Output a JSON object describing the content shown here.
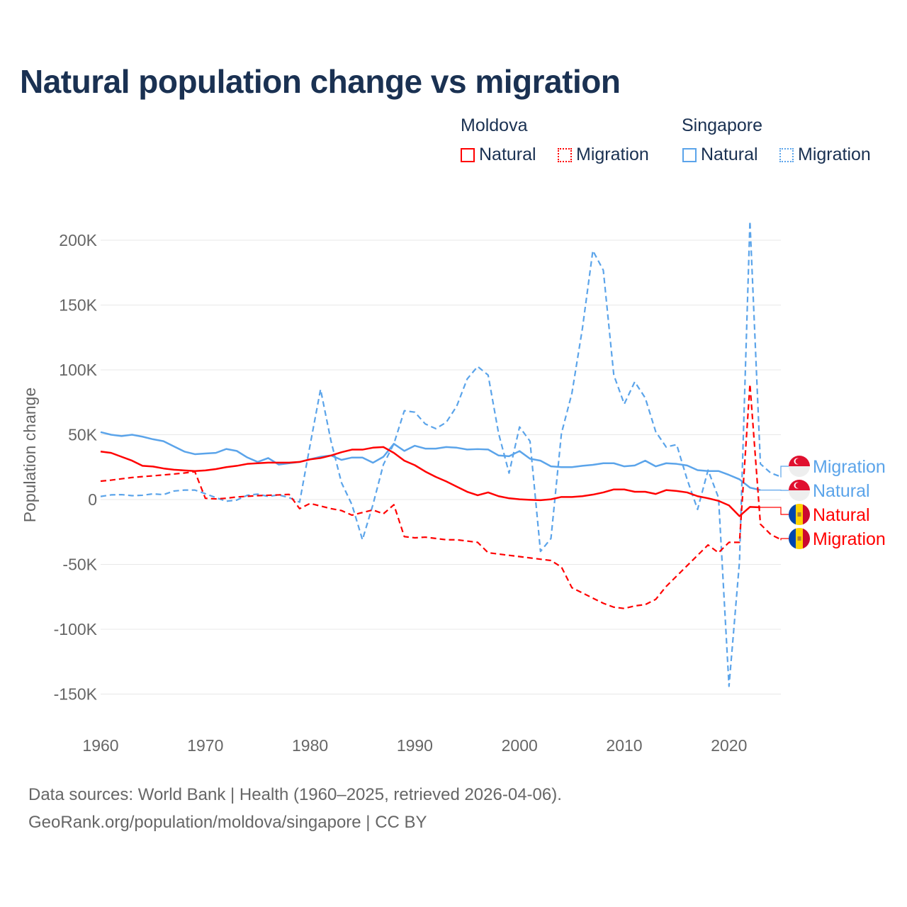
{
  "title": "Natural population change vs migration",
  "legend": {
    "groups": [
      {
        "name": "Moldova",
        "items": [
          {
            "label": "Natural",
            "style": "solid",
            "color": "#ff0000"
          },
          {
            "label": "Migration",
            "style": "dotted",
            "color": "#ff0000"
          }
        ]
      },
      {
        "name": "Singapore",
        "items": [
          {
            "label": "Natural",
            "style": "solid",
            "color": "#5ba4ea"
          },
          {
            "label": "Migration",
            "style": "dotted",
            "color": "#5ba4ea"
          }
        ]
      }
    ]
  },
  "footer": {
    "line1": "Data sources: World Bank | Health (1960–2025, retrieved 2026-04-06).",
    "line2": "GeoRank.org/population/moldova/singapore | CC BY"
  },
  "chart_data": {
    "type": "line",
    "title": "Natural population change vs migration",
    "xlabel": "",
    "ylabel": "Population change",
    "xlim": [
      1960,
      2025
    ],
    "ylim": [
      -165000,
      225000
    ],
    "xticks": [
      1960,
      1970,
      1980,
      1990,
      2000,
      2010,
      2020
    ],
    "xtick_labels": [
      "1960",
      "1970",
      "1980",
      "1990",
      "2000",
      "2010",
      "2020"
    ],
    "yticks": [
      -150000,
      -100000,
      -50000,
      0,
      50000,
      100000,
      150000,
      200000
    ],
    "ytick_labels": [
      "-150K",
      "-100K",
      "-50K",
      "0",
      "50K",
      "100K",
      "150K",
      "200K"
    ],
    "grid": true,
    "legend_position": "top-right",
    "series": [
      {
        "name": "Singapore Migration",
        "end_label": "Migration",
        "country": "Singapore",
        "color": "#5ba4ea",
        "dash": true,
        "start_year": 1960,
        "values": [
          2.4,
          3.6,
          3.8,
          3,
          3.3,
          4.4,
          3.8,
          6.6,
          7.3,
          7.3,
          4.5,
          1.5,
          -1.3,
          -0.4,
          3.3,
          4.2,
          2.4,
          3.6,
          1.5,
          -2,
          42,
          85,
          45,
          13,
          -4,
          -31,
          -4,
          27,
          43,
          68.5,
          67.4,
          58.3,
          54.7,
          59.5,
          72,
          93,
          102.6,
          96,
          51,
          20.4,
          56,
          45,
          -40,
          -30,
          51,
          82,
          131.8,
          192,
          176.8,
          96,
          73.7,
          90.8,
          78.4,
          52.4,
          40.5,
          42.4,
          15.6,
          -7.6,
          22.7,
          1.4,
          -144,
          -48,
          214.7,
          27.5,
          20.4,
          17.5
        ]
      },
      {
        "name": "Singapore Natural",
        "end_label": "Natural",
        "country": "Singapore",
        "color": "#5ba4ea",
        "dash": false,
        "start_year": 1960,
        "values": [
          52,
          50,
          49,
          50,
          48.5,
          46.5,
          45,
          41,
          37,
          35,
          35.5,
          36,
          39,
          37.5,
          32.5,
          29,
          32,
          27,
          28,
          29,
          31,
          33,
          34,
          30.6,
          32.4,
          32.4,
          28.4,
          33,
          43,
          37.5,
          41.5,
          39.3,
          39.3,
          40.5,
          40,
          38.6,
          38.9,
          38.6,
          34,
          33.4,
          37.4,
          31.5,
          30,
          25.6,
          25,
          25,
          26,
          26.8,
          28,
          28,
          25.6,
          26.3,
          30,
          25.6,
          28,
          27.5,
          26.3,
          22.7,
          22,
          22,
          19,
          15.6,
          9.2,
          7.3
        ]
      },
      {
        "name": "Moldova Natural",
        "end_label": "Natural",
        "country": "Moldova",
        "color": "#ff0000",
        "dash": false,
        "start_year": 1960,
        "values": [
          37,
          36,
          33,
          30,
          26,
          25.5,
          24,
          23,
          22.5,
          22,
          22.5,
          23.5,
          25,
          26,
          27.5,
          28,
          28.5,
          28.5,
          28.5,
          29,
          31,
          32,
          34,
          36.5,
          38.5,
          38.5,
          40,
          40.5,
          36,
          30,
          26.5,
          21.6,
          17.5,
          14,
          10,
          6,
          3.3,
          5.5,
          2.6,
          1,
          0.2,
          -0.2,
          -0.5,
          0.2,
          2,
          2,
          2.6,
          3.8,
          5.5,
          7.8,
          7.8,
          6,
          6,
          4.3,
          7.3,
          6.6,
          5.5,
          2.6,
          1,
          -1,
          -4.5,
          -12.8,
          -5.7,
          -6
        ]
      },
      {
        "name": "Moldova Migration",
        "end_label": "Migration",
        "country": "Moldova",
        "color": "#ff0000",
        "dash": true,
        "start_year": 1960,
        "values": [
          14.2,
          15,
          16,
          17,
          17.7,
          18.3,
          19,
          19.7,
          20.5,
          21.5,
          1,
          0.5,
          1,
          2,
          2.5,
          3,
          3.3,
          3.6,
          4,
          -7,
          -3,
          -5,
          -7,
          -8.5,
          -12,
          -10,
          -8,
          -11,
          -4,
          -28.6,
          -29.5,
          -29,
          -30,
          -31,
          -31,
          -32,
          -33,
          -41,
          -42,
          -43,
          -44,
          -45,
          -46,
          -47,
          -52,
          -68,
          -72,
          -76,
          -80,
          -83,
          -84,
          -82,
          -81,
          -77,
          -67,
          -59,
          -51,
          -43,
          -35,
          -41,
          -33,
          -33,
          89,
          -19,
          -27,
          -31
        ]
      }
    ],
    "value_unit": "thousands"
  }
}
